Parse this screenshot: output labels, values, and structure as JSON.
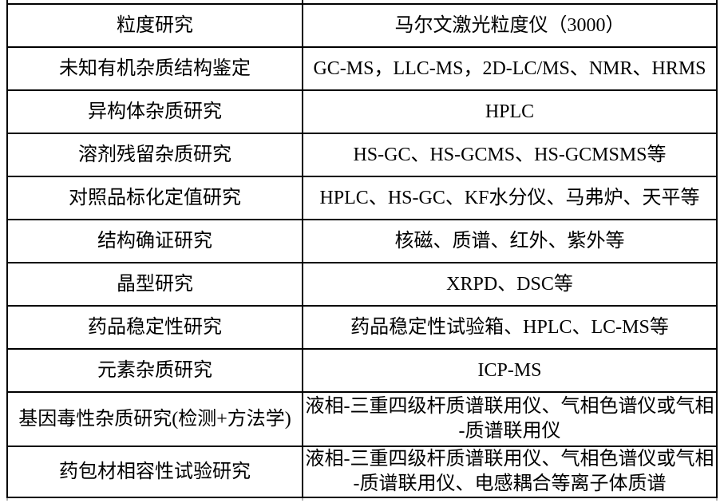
{
  "page": {
    "background_color": "#ffffff",
    "grid_color": "#000000",
    "cutoff_grid_color": "#b3b3b3",
    "text_color": "#000000"
  },
  "table": {
    "rows": [
      {
        "category": "粒度研究",
        "instruments": "马尔文激光粒度仪（3000）"
      },
      {
        "category": "未知有机杂质结构鉴定",
        "instruments": "GC-MS，LLC-MS，2D-LC/MS、NMR、HRMS"
      },
      {
        "category": "异构体杂质研究",
        "instruments": "HPLC"
      },
      {
        "category": "溶剂残留杂质研究",
        "instruments": "HS-GC、HS-GCMS、HS-GCMSMS等"
      },
      {
        "category": "对照品标化定值研究",
        "instruments": "HPLC、HS-GC、KF水分仪、马弗炉、天平等"
      },
      {
        "category": "结构确证研究",
        "instruments": "核磁、质谱、红外、紫外等"
      },
      {
        "category": "晶型研究",
        "instruments": "XRPD、DSC等"
      },
      {
        "category": "药品稳定性研究",
        "instruments": "药品稳定性试验箱、HPLC、LC-MS等"
      },
      {
        "category": "元素杂质研究",
        "instruments": "ICP-MS"
      },
      {
        "category": "基因毒性杂质研究(检测+方法学)",
        "instruments": "液相-三重四级杆质谱联用仪、气相色谱仪或气相\n-质谱联用仪"
      },
      {
        "category": "药包材相容性试验研究",
        "instruments": "液相-三重四级杆质谱联用仪、气相色谱仪或气相\n-质谱联用仪、电感耦合等离子体质谱"
      }
    ]
  }
}
